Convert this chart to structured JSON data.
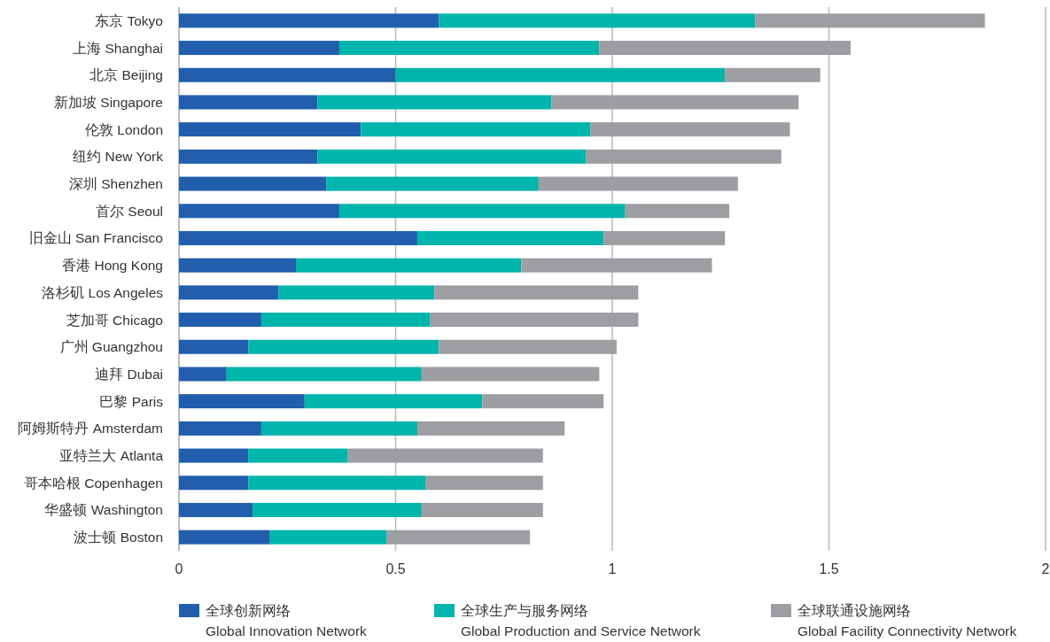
{
  "chart_data": {
    "type": "bar",
    "orientation": "horizontal",
    "stacked": true,
    "categories": [
      "东京 Tokyo",
      "上海 Shanghai",
      "北京 Beijing",
      "新加坡 Singapore",
      "伦敦 London",
      "纽约 New York",
      "深圳 Shenzhen",
      "首尔 Seoul",
      "旧金山 San Francisco",
      "香港 Hong Kong",
      "洛杉矶 Los Angeles",
      "芝加哥 Chicago",
      "广州 Guangzhou",
      "迪拜 Dubai",
      "巴黎 Paris",
      "阿姆斯特丹 Amsterdam",
      "亚特兰大 Atlanta",
      "哥本哈根 Copenhagen",
      "华盛顿 Washington",
      "波士顿 Boston"
    ],
    "series": [
      {
        "name": "全球创新网络\nGlobal Innovation Network",
        "color": "#215ead",
        "values": [
          0.6,
          0.37,
          0.5,
          0.32,
          0.42,
          0.32,
          0.34,
          0.37,
          0.55,
          0.27,
          0.23,
          0.19,
          0.16,
          0.11,
          0.29,
          0.19,
          0.16,
          0.16,
          0.17,
          0.21
        ]
      },
      {
        "name": "全球生产与服务网络\nGlobal Production and Service Network",
        "color": "#00b5ac",
        "values": [
          0.73,
          0.6,
          0.76,
          0.54,
          0.53,
          0.62,
          0.49,
          0.66,
          0.43,
          0.52,
          0.36,
          0.39,
          0.44,
          0.45,
          0.41,
          0.36,
          0.23,
          0.41,
          0.39,
          0.27
        ]
      },
      {
        "name": "全球联通设施网络\nGlobal Facility Connectivity Network",
        "color": "#9d9ea2",
        "values": [
          0.53,
          0.58,
          0.22,
          0.57,
          0.46,
          0.45,
          0.46,
          0.24,
          0.28,
          0.44,
          0.47,
          0.48,
          0.41,
          0.41,
          0.28,
          0.34,
          0.45,
          0.27,
          0.28,
          0.33
        ]
      }
    ],
    "xlim": [
      0,
      2
    ],
    "xticks": [
      0,
      0.5,
      1,
      1.5,
      2
    ],
    "grid": "x",
    "legend": "bottom"
  }
}
